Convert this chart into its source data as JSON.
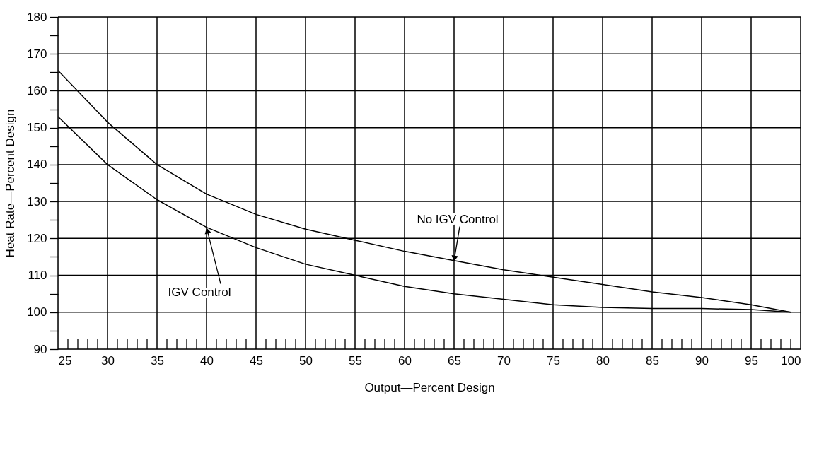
{
  "chart_data": {
    "type": "line",
    "xlabel": "Output—Percent Design",
    "ylabel": "Heat Rate—Percent Design",
    "x": [
      25,
      30,
      35,
      40,
      45,
      50,
      55,
      60,
      65,
      70,
      75,
      80,
      85,
      90,
      95,
      99
    ],
    "series": [
      {
        "color": "#000000",
        "values": [
          165.5,
          151.5,
          140,
          132,
          126.5,
          122.5,
          119.5,
          116.5,
          114,
          111.5,
          109.5,
          107.5,
          105.5,
          104,
          102,
          100
        ]
      },
      {
        "color": "#000000",
        "values": [
          153,
          140,
          130.5,
          123,
          117.5,
          113,
          110,
          107,
          105,
          103.5,
          102,
          101.3,
          101,
          101,
          100.7,
          100
        ]
      }
    ],
    "annotations": [
      {
        "text": "No IGV Control",
        "x": 65,
        "y": 114
      },
      {
        "text": "IGV Control",
        "x": 40,
        "y": 123
      }
    ],
    "xlim": [
      25,
      100
    ],
    "ylim": [
      90,
      180
    ],
    "xticks": [
      25,
      {
        "value": 26,
        "label": null
      },
      {
        "value": 27,
        "label": null
      },
      {
        "value": 28,
        "label": null
      },
      {
        "value": 29,
        "label": null
      },
      30,
      {
        "value": 31,
        "label": null
      },
      {
        "value": 32,
        "label": null
      },
      {
        "value": 33,
        "label": null
      },
      {
        "value": 34,
        "label": null
      },
      35,
      {
        "value": 36,
        "label": null
      },
      {
        "value": 37,
        "label": null
      },
      {
        "value": 38,
        "label": null
      },
      {
        "value": 39,
        "label": null
      },
      40,
      {
        "value": 41,
        "label": null
      },
      {
        "value": 42,
        "label": null
      },
      {
        "value": 43,
        "label": null
      },
      {
        "value": 44,
        "label": null
      },
      45,
      {
        "value": 46,
        "label": null
      },
      {
        "value": 47,
        "label": null
      },
      {
        "value": 48,
        "label": null
      },
      {
        "value": 49,
        "label": null
      },
      50,
      {
        "value": 51,
        "label": null
      },
      {
        "value": 52,
        "label": null
      },
      {
        "value": 53,
        "label": null
      },
      {
        "value": 54,
        "label": null
      },
      55,
      {
        "value": 56,
        "label": null
      },
      {
        "value": 57,
        "label": null
      },
      {
        "value": 58,
        "label": null
      },
      {
        "value": 59,
        "label": null
      },
      60,
      {
        "value": 61,
        "label": null
      },
      {
        "value": 62,
        "label": null
      },
      {
        "value": 63,
        "label": null
      },
      {
        "value": 64,
        "label": null
      },
      65,
      {
        "value": 66,
        "label": null
      },
      {
        "value": 67,
        "label": null
      },
      {
        "value": 68,
        "label": null
      },
      {
        "value": 69,
        "label": null
      },
      70,
      {
        "value": 71,
        "label": null
      },
      {
        "value": 72,
        "label": null
      },
      {
        "value": 73,
        "label": null
      },
      {
        "value": 74,
        "label": null
      },
      75,
      {
        "value": 76,
        "label": null
      },
      {
        "value": 77,
        "label": null
      },
      {
        "value": 78,
        "label": null
      },
      {
        "value": 79,
        "label": null
      },
      80,
      {
        "value": 81,
        "label": null
      },
      {
        "value": 82,
        "label": null
      },
      {
        "value": 83,
        "label": null
      },
      {
        "value": 84,
        "label": null
      },
      85,
      {
        "value": 86,
        "label": null
      },
      {
        "value": 87,
        "label": null
      },
      {
        "value": 88,
        "label": null
      },
      {
        "value": 89,
        "label": null
      },
      90,
      {
        "value": 91,
        "label": null
      },
      {
        "value": 92,
        "label": null
      },
      {
        "value": 93,
        "label": null
      },
      {
        "value": 94,
        "label": null
      },
      95,
      {
        "value": 96,
        "label": null
      },
      {
        "value": 97,
        "label": null
      },
      {
        "value": 98,
        "label": null
      },
      {
        "value": 99,
        "label": null
      },
      100
    ],
    "yticks": [
      90,
      {
        "value": 95,
        "label": null
      },
      100,
      {
        "value": 105,
        "label": null
      },
      110,
      {
        "value": 115,
        "label": null
      },
      120,
      {
        "value": 125,
        "label": null
      },
      130,
      {
        "value": 135,
        "label": null
      },
      140,
      {
        "value": 145,
        "label": null
      },
      150,
      {
        "value": 155,
        "label": null
      },
      160,
      {
        "value": 165,
        "label": null
      },
      170,
      {
        "value": 175,
        "label": null
      },
      180
    ],
    "grid": true,
    "marker": "none",
    "line_style": "solid"
  }
}
